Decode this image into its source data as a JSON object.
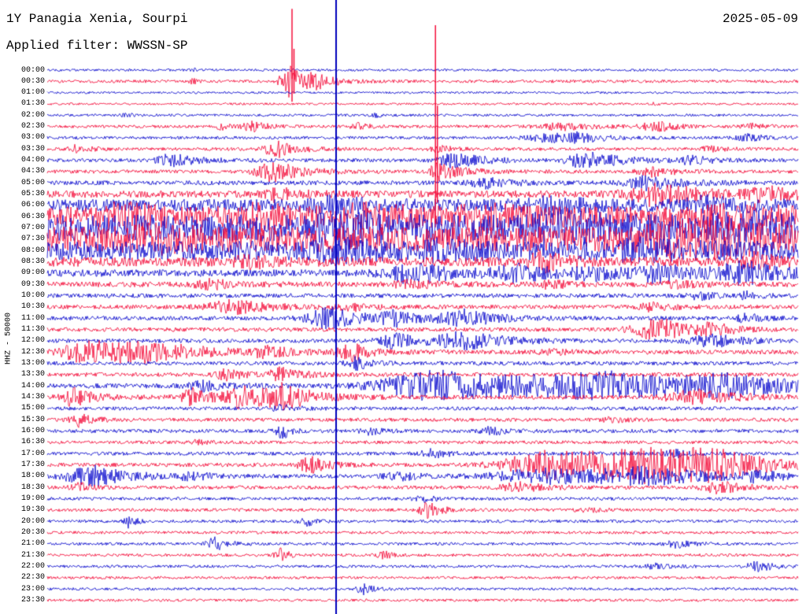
{
  "header": {
    "station_title": "1Y Panagia Xenia, Sourpi",
    "date": "2025-05-09",
    "filter_line": "Applied filter: WWSSN-SP"
  },
  "left_axis": {
    "label": "HHZ - 50000"
  },
  "colors": {
    "trace_red": "#f40030",
    "trace_blue": "#0000cc",
    "marker_blue": "#0000bb",
    "text": "#000000",
    "background": "#ffffff"
  },
  "chart_data": {
    "type": "line",
    "title": "1Y Panagia Xenia, Sourpi",
    "subtitle": "Applied filter: WWSSN-SP",
    "date": "2025-05-09",
    "ylabel": "HHZ - 50000",
    "row_duration_minutes": 30,
    "marker_x": 0.3847,
    "rows": [
      [
        "00:00",
        "blue",
        1.5
      ],
      [
        "00:30",
        "red",
        1.9
      ],
      [
        "01:00",
        "blue",
        1.4
      ],
      [
        "01:30",
        "red",
        1.4
      ],
      [
        "02:00",
        "blue",
        1.6
      ],
      [
        "02:30",
        "red",
        1.9
      ],
      [
        "03:00",
        "blue",
        1.9
      ],
      [
        "03:30",
        "red",
        2.1
      ],
      [
        "04:00",
        "blue",
        2.3
      ],
      [
        "04:30",
        "red",
        2.3
      ],
      [
        "05:00",
        "blue",
        2.8
      ],
      [
        "05:30",
        "red",
        4.5
      ],
      [
        "06:00",
        "blue",
        8
      ],
      [
        "06:30",
        "red",
        13
      ],
      [
        "07:00",
        "blue",
        17
      ],
      [
        "07:30",
        "red",
        16
      ],
      [
        "08:00",
        "blue",
        12
      ],
      [
        "08:30",
        "red",
        6
      ],
      [
        "09:00",
        "blue",
        4.5
      ],
      [
        "09:30",
        "red",
        3.4
      ],
      [
        "10:00",
        "blue",
        2.7
      ],
      [
        "10:30",
        "red",
        2.6
      ],
      [
        "11:00",
        "blue",
        2.6
      ],
      [
        "11:30",
        "red",
        2.6
      ],
      [
        "12:00",
        "blue",
        2.6
      ],
      [
        "12:30",
        "red",
        2.8
      ],
      [
        "13:00",
        "blue",
        2.5
      ],
      [
        "13:30",
        "red",
        2.6
      ],
      [
        "14:00",
        "blue",
        3
      ],
      [
        "14:30",
        "red",
        2.8
      ],
      [
        "15:00",
        "blue",
        2.3
      ],
      [
        "15:30",
        "red",
        2.3
      ],
      [
        "16:00",
        "blue",
        2.3
      ],
      [
        "16:30",
        "red",
        2.1
      ],
      [
        "17:00",
        "blue",
        2.3
      ],
      [
        "17:30",
        "red",
        2.5
      ],
      [
        "18:00",
        "blue",
        2.5
      ],
      [
        "18:30",
        "red",
        2.3
      ],
      [
        "19:00",
        "blue",
        2.0
      ],
      [
        "19:30",
        "red",
        2.0
      ],
      [
        "20:00",
        "blue",
        1.9
      ],
      [
        "20:30",
        "red",
        1.8
      ],
      [
        "21:00",
        "blue",
        1.8
      ],
      [
        "21:30",
        "red",
        1.8
      ],
      [
        "22:00",
        "blue",
        1.8
      ],
      [
        "22:30",
        "red",
        1.7
      ],
      [
        "23:00",
        "blue",
        1.7
      ],
      [
        "23:30",
        "red",
        1.7
      ]
    ],
    "events": [
      [
        "00:00",
        0.194,
        2,
        3,
        6
      ],
      [
        "00:30",
        0.323,
        20,
        8,
        20
      ],
      [
        "00:30",
        0.356,
        7,
        6,
        25
      ],
      [
        "00:30",
        0.194,
        3,
        3,
        8
      ],
      [
        "01:30",
        0.81,
        1.5,
        4,
        8
      ],
      [
        "02:00",
        0.105,
        2,
        5,
        10
      ],
      [
        "02:00",
        0.44,
        2,
        5,
        10
      ],
      [
        "02:30",
        0.234,
        3.5,
        8,
        15
      ],
      [
        "02:30",
        0.274,
        6,
        8,
        18
      ],
      [
        "02:30",
        0.417,
        4,
        8,
        15
      ],
      [
        "02:30",
        0.692,
        4,
        25,
        40
      ],
      [
        "02:30",
        0.812,
        6,
        12,
        25
      ],
      [
        "02:30",
        0.938,
        3,
        10,
        18
      ],
      [
        "03:00",
        0.671,
        5,
        20,
        35
      ],
      [
        "03:00",
        0.713,
        5,
        15,
        30
      ],
      [
        "03:00",
        0.935,
        4,
        12,
        22
      ],
      [
        "03:30",
        0.039,
        5,
        8,
        16
      ],
      [
        "03:30",
        0.306,
        11,
        10,
        26
      ],
      [
        "03:30",
        0.524,
        4,
        8,
        16
      ],
      [
        "03:30",
        0.886,
        3,
        10,
        18
      ],
      [
        "04:00",
        0.166,
        8,
        12,
        30
      ],
      [
        "04:00",
        0.545,
        9,
        15,
        35
      ],
      [
        "04:00",
        0.718,
        11,
        15,
        40
      ],
      [
        "04:00",
        0.86,
        5,
        12,
        25
      ],
      [
        "04:30",
        0.302,
        12,
        15,
        35
      ],
      [
        "04:30",
        0.517,
        14,
        4,
        28
      ],
      [
        "04:30",
        0.807,
        6,
        12,
        25
      ],
      [
        "05:00",
        0.587,
        6,
        15,
        30
      ],
      [
        "05:00",
        0.802,
        8,
        20,
        40
      ],
      [
        "05:30",
        0.304,
        7,
        12,
        25
      ],
      [
        "05:30",
        0.812,
        13,
        25,
        50
      ],
      [
        "05:30",
        0.959,
        9,
        15,
        35
      ],
      [
        "06:00",
        0.388,
        7,
        20,
        40
      ],
      [
        "06:00",
        0.671,
        6,
        25,
        45
      ],
      [
        "06:00",
        0.881,
        6,
        25,
        45
      ],
      [
        "06:30",
        0.1,
        10,
        15,
        40
      ],
      [
        "06:30",
        0.283,
        7,
        20,
        40
      ],
      [
        "06:30",
        0.43,
        8,
        25,
        45
      ],
      [
        "06:30",
        0.587,
        6,
        25,
        45
      ],
      [
        "06:30",
        0.922,
        7,
        30,
        50
      ],
      [
        "07:00",
        0.409,
        8,
        30,
        55
      ],
      [
        "07:00",
        0.692,
        8,
        30,
        55
      ],
      [
        "07:00",
        0.933,
        8,
        30,
        55
      ],
      [
        "07:30",
        0.147,
        6,
        30,
        50
      ],
      [
        "07:30",
        0.881,
        12,
        60,
        90
      ],
      [
        "08:00",
        0.388,
        7,
        25,
        45
      ],
      [
        "08:00",
        0.524,
        5,
        25,
        45
      ],
      [
        "08:00",
        0.797,
        6,
        30,
        50
      ],
      [
        "08:30",
        0.273,
        5,
        15,
        30
      ],
      [
        "08:30",
        0.66,
        10,
        12,
        26
      ],
      [
        "08:30",
        0.943,
        8,
        15,
        30
      ],
      [
        "09:00",
        0.493,
        12,
        25,
        45
      ],
      [
        "09:00",
        0.629,
        9,
        20,
        40
      ],
      [
        "09:00",
        0.728,
        7,
        18,
        35
      ],
      [
        "09:00",
        0.818,
        10,
        20,
        40
      ],
      [
        "09:00",
        0.933,
        12,
        25,
        50
      ],
      [
        "09:30",
        0.22,
        5,
        15,
        30
      ],
      [
        "09:30",
        0.482,
        5,
        15,
        30
      ],
      [
        "09:30",
        0.671,
        4,
        12,
        25
      ],
      [
        "09:30",
        0.839,
        4,
        12,
        25
      ],
      [
        "10:00",
        0.868,
        6,
        8,
        16
      ],
      [
        "10:00",
        0.933,
        4,
        8,
        16
      ],
      [
        "10:30",
        0.252,
        8,
        25,
        45
      ],
      [
        "10:30",
        0.409,
        4,
        15,
        30
      ],
      [
        "10:30",
        0.807,
        5,
        12,
        25
      ],
      [
        "11:00",
        0.377,
        13,
        20,
        40
      ],
      [
        "11:00",
        0.466,
        8,
        15,
        30
      ],
      [
        "11:00",
        0.556,
        10,
        20,
        40
      ],
      [
        "11:00",
        0.933,
        5,
        10,
        20
      ],
      [
        "11:30",
        0.818,
        13,
        25,
        40
      ],
      [
        "11:30",
        0.886,
        6,
        15,
        25
      ],
      [
        "12:00",
        0.466,
        9,
        15,
        30
      ],
      [
        "12:00",
        0.561,
        11,
        25,
        45
      ],
      [
        "12:00",
        0.886,
        8,
        18,
        35
      ],
      [
        "12:30",
        0.052,
        15,
        20,
        50
      ],
      [
        "12:30",
        0.147,
        11,
        40,
        60
      ],
      [
        "12:30",
        0.293,
        6,
        15,
        30
      ],
      [
        "12:30",
        0.406,
        10,
        12,
        25
      ],
      [
        "12:30",
        0.671,
        3,
        10,
        20
      ],
      [
        "13:00",
        0.414,
        7,
        10,
        20
      ],
      [
        "13:30",
        0.241,
        6,
        12,
        22
      ],
      [
        "13:30",
        0.314,
        8,
        12,
        25
      ],
      [
        "14:00",
        0.21,
        6,
        15,
        30
      ],
      [
        "14:00",
        0.524,
        18,
        50,
        110
      ],
      [
        "14:00",
        0.755,
        14,
        80,
        110
      ],
      [
        "14:00",
        0.912,
        10,
        40,
        70
      ],
      [
        "14:30",
        0.034,
        12,
        10,
        25
      ],
      [
        "14:30",
        0.196,
        10,
        12,
        25
      ],
      [
        "14:30",
        0.262,
        13,
        15,
        30
      ],
      [
        "14:30",
        0.314,
        15,
        15,
        35
      ],
      [
        "14:30",
        0.87,
        8,
        30,
        50
      ],
      [
        "15:00",
        0.314,
        4,
        10,
        20
      ],
      [
        "15:30",
        0.042,
        8,
        8,
        18
      ],
      [
        "15:30",
        0.755,
        3,
        10,
        18
      ],
      [
        "16:00",
        0.314,
        9,
        6,
        12
      ],
      [
        "16:00",
        0.43,
        4,
        8,
        15
      ],
      [
        "16:00",
        0.592,
        5,
        10,
        18
      ],
      [
        "16:30",
        0.199,
        3,
        8,
        15
      ],
      [
        "17:00",
        0.514,
        5,
        10,
        20
      ],
      [
        "17:00",
        0.839,
        4,
        10,
        18
      ],
      [
        "17:30",
        0.351,
        10,
        10,
        22
      ],
      [
        "17:30",
        0.671,
        17,
        40,
        80
      ],
      [
        "17:30",
        0.797,
        17,
        50,
        80
      ],
      [
        "17:30",
        0.891,
        14,
        40,
        60
      ],
      [
        "18:00",
        0.063,
        12,
        25,
        45
      ],
      [
        "18:00",
        0.194,
        5,
        12,
        22
      ],
      [
        "18:00",
        0.466,
        6,
        12,
        25
      ],
      [
        "18:00",
        0.671,
        9,
        50,
        80
      ],
      [
        "18:00",
        0.807,
        9,
        50,
        80
      ],
      [
        "18:00",
        0.949,
        6,
        12,
        25
      ],
      [
        "18:30",
        0.045,
        5,
        8,
        16
      ],
      [
        "18:30",
        0.629,
        6,
        15,
        30
      ],
      [
        "18:30",
        0.896,
        8,
        15,
        25
      ],
      [
        "19:00",
        0.503,
        3,
        10,
        18
      ],
      [
        "19:30",
        0.508,
        10,
        8,
        16
      ],
      [
        "19:30",
        0.718,
        3,
        10,
        18
      ],
      [
        "20:00",
        0.108,
        8,
        4,
        9
      ],
      [
        "20:00",
        0.344,
        8,
        5,
        10
      ],
      [
        "21:00",
        0.225,
        8,
        8,
        15
      ],
      [
        "21:00",
        0.839,
        5,
        10,
        18
      ],
      [
        "21:30",
        0.311,
        9,
        5,
        10
      ],
      [
        "21:30",
        0.451,
        4,
        8,
        14
      ],
      [
        "22:00",
        0.812,
        3,
        10,
        18
      ],
      [
        "22:00",
        0.947,
        6,
        10,
        20
      ],
      [
        "23:00",
        0.421,
        7,
        6,
        12
      ]
    ],
    "spikes": [
      [
        "00:30",
        0.326,
        92,
        26
      ],
      [
        "04:30",
        0.517,
        186,
        66
      ]
    ]
  }
}
